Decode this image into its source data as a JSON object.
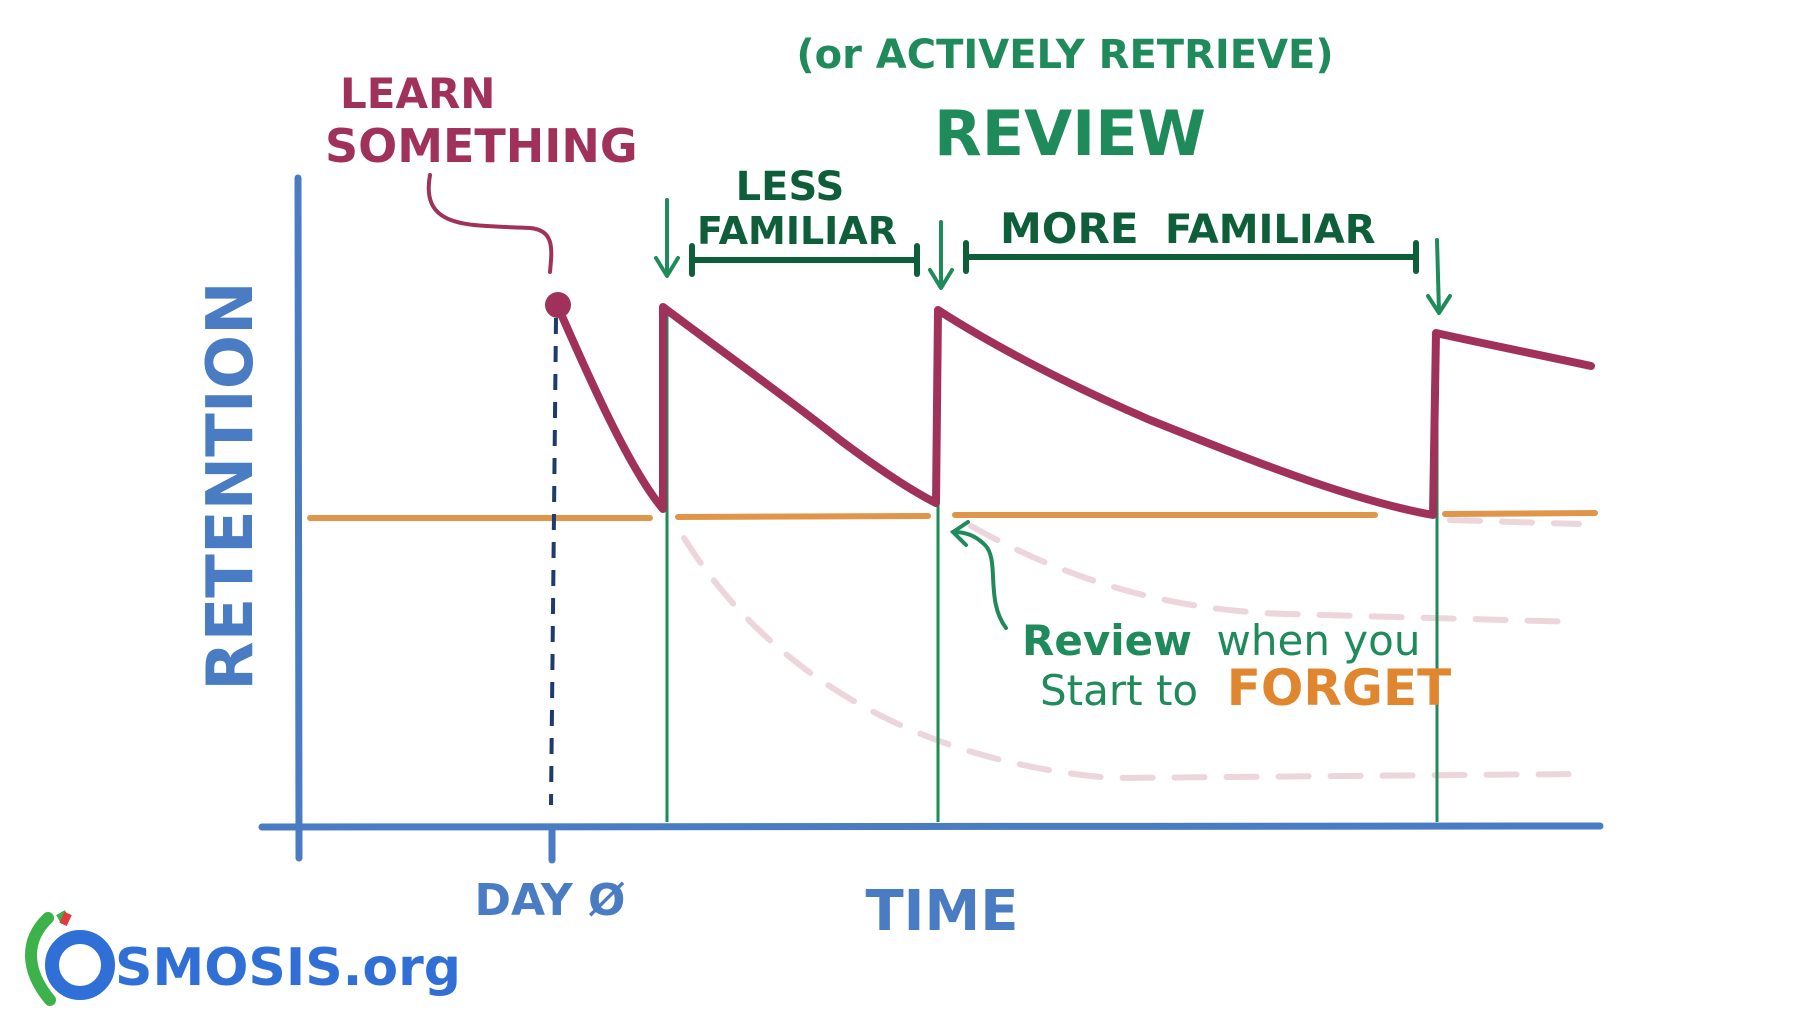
{
  "labels": {
    "subtitle": "(or ACTIVELY RETRIEVE)",
    "title": "REVIEW",
    "learn_line1": "LEARN",
    "learn_line2": "SOMETHING",
    "less": "LESS",
    "familiar": "FAMILIAR",
    "more_familiar_more": "MORE",
    "more_familiar_familiar": "FAMILIAR",
    "y_axis": "RETENTION",
    "x_axis": "TIME",
    "day_zero": "DAY Ø",
    "note_review": "Review",
    "note_rest1": "when you",
    "note_line2": "Start to",
    "note_forget": "FORGET"
  },
  "logo": {
    "text": "OSMOSIS.org"
  },
  "colors": {
    "axis": "#4a7cc4",
    "retention_curve": "#a0325a",
    "review_marker": "#1f8a5a",
    "bracket": "#0f5e3a",
    "threshold": "#e0964a",
    "forgetting_dashed": "#ecd6db"
  }
}
